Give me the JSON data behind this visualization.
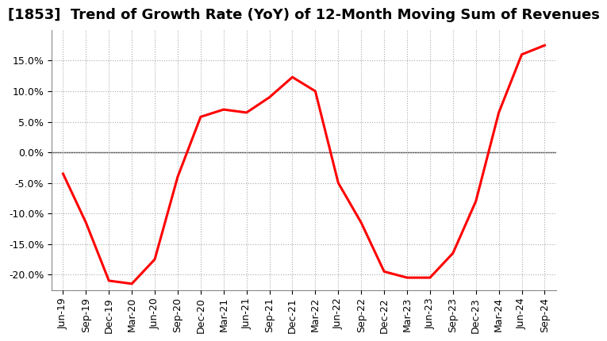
{
  "title": "[1853]  Trend of Growth Rate (YoY) of 12-Month Moving Sum of Revenues",
  "line_color": "#ff0000",
  "line_width": 2.2,
  "background_color": "#ffffff",
  "grid_color": "#aaaaaa",
  "ylim": [
    -0.225,
    0.2
  ],
  "yticks": [
    -0.2,
    -0.15,
    -0.1,
    -0.05,
    0.0,
    0.05,
    0.1,
    0.15
  ],
  "x_labels": [
    "Jun-19",
    "Sep-19",
    "Dec-19",
    "Mar-20",
    "Jun-20",
    "Sep-20",
    "Dec-20",
    "Mar-21",
    "Jun-21",
    "Sep-21",
    "Dec-21",
    "Mar-22",
    "Jun-22",
    "Sep-22",
    "Dec-22",
    "Mar-23",
    "Jun-23",
    "Sep-23",
    "Dec-23",
    "Mar-24",
    "Jun-24",
    "Sep-24"
  ],
  "y_values": [
    -0.035,
    -0.115,
    -0.21,
    -0.215,
    -0.175,
    -0.04,
    0.058,
    0.07,
    0.065,
    0.09,
    0.123,
    0.1,
    -0.05,
    -0.115,
    -0.195,
    -0.205,
    -0.205,
    -0.165,
    -0.08,
    0.065,
    0.16,
    0.175
  ],
  "zero_line_color": "#555555",
  "title_fontsize": 13,
  "tick_fontsize": 9
}
